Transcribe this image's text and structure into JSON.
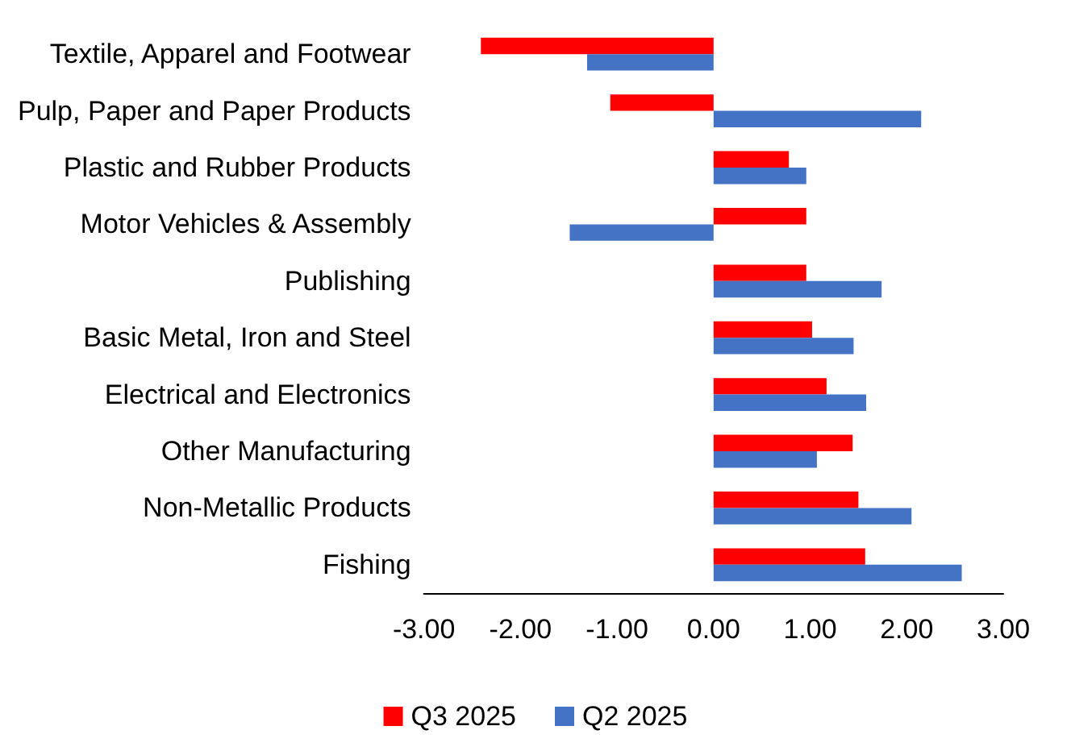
{
  "chart_data": {
    "type": "bar",
    "orientation": "horizontal",
    "categories": [
      "Textile, Apparel and Footwear",
      "Pulp, Paper and Paper Products",
      "Plastic and Rubber Products",
      "Motor Vehicles & Assembly",
      "Publishing",
      "Basic Metal, Iron and Steel",
      "Electrical and Electronics",
      "Other Manufacturing",
      "Non-Metallic Products",
      "Fishing"
    ],
    "series": [
      {
        "name": "Q3 2025",
        "color": "#ff0000",
        "values": [
          -2.41,
          -1.07,
          0.78,
          0.96,
          0.96,
          1.02,
          1.17,
          1.44,
          1.5,
          1.57
        ]
      },
      {
        "name": "Q2 2025",
        "color": "#4472c4",
        "values": [
          -1.31,
          2.15,
          0.96,
          -1.49,
          1.74,
          1.45,
          1.58,
          1.07,
          2.05,
          2.57
        ]
      }
    ],
    "xlim": [
      -3,
      3
    ],
    "xticks": [
      {
        "value": -3,
        "label": "-3.00"
      },
      {
        "value": -2,
        "label": "-2.00"
      },
      {
        "value": -1,
        "label": "-1.00"
      },
      {
        "value": 0,
        "label": "0.00"
      },
      {
        "value": 1,
        "label": "1.00"
      },
      {
        "value": 2,
        "label": "2.00"
      },
      {
        "value": 3,
        "label": "3.00"
      }
    ],
    "grid": false,
    "legend": "bottom"
  }
}
